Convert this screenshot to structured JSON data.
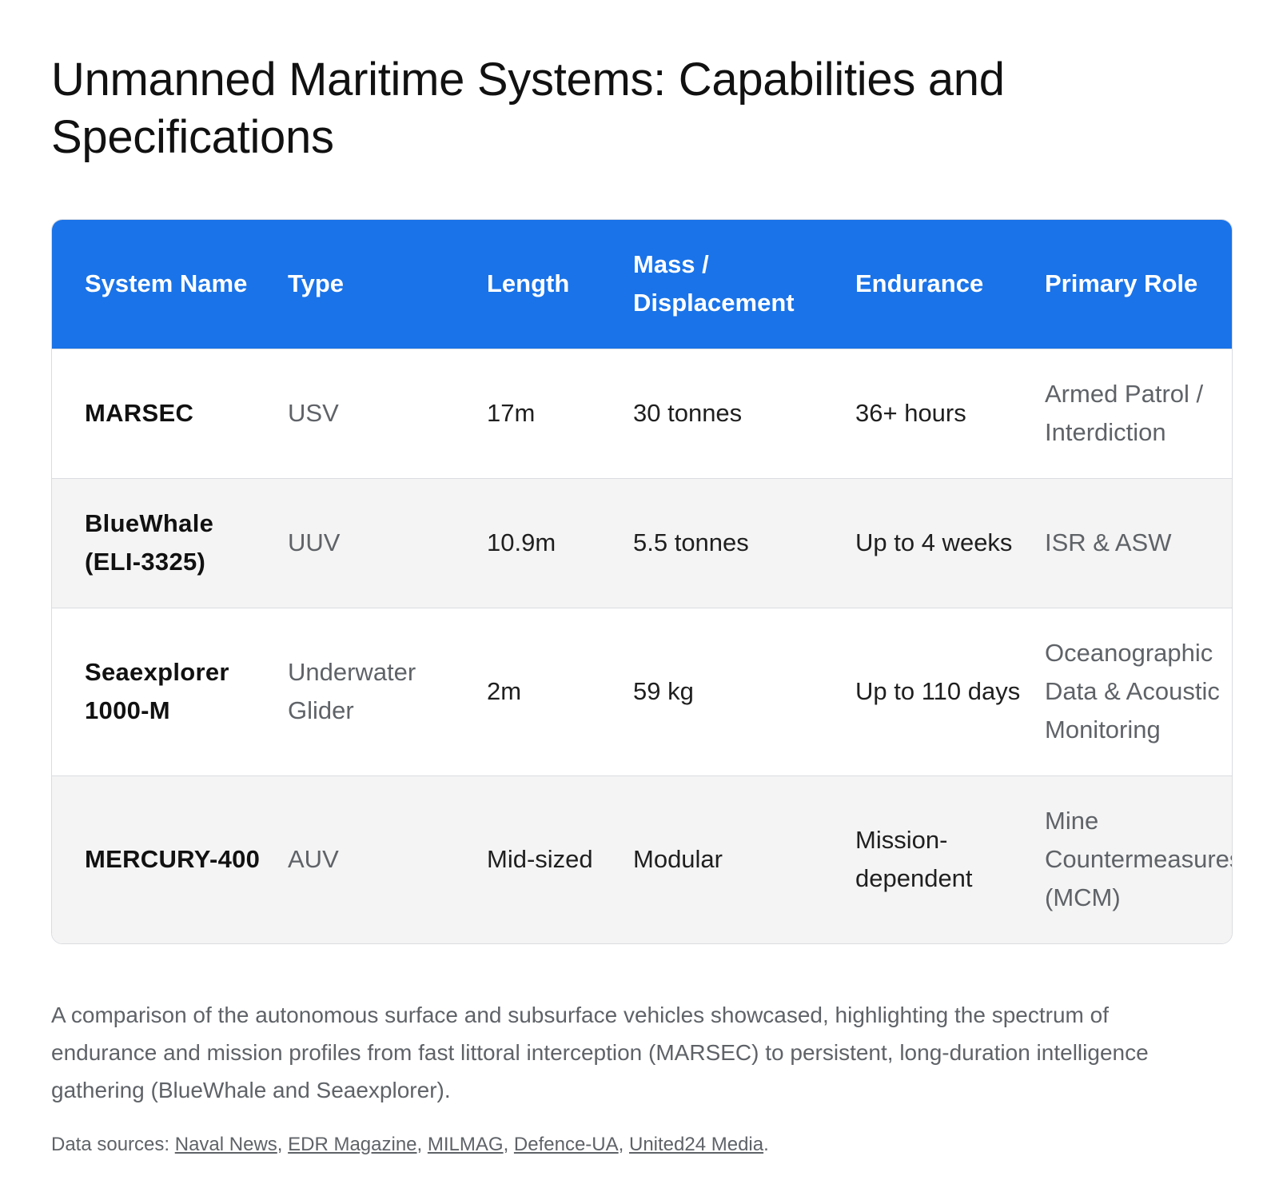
{
  "title": "Unmanned Maritime Systems: Capabilities and Specifications",
  "table": {
    "headers": [
      "System Name",
      "Type",
      "Length",
      "Mass / Displacement",
      "Endurance",
      "Primary Role"
    ],
    "rows": [
      {
        "system": "MARSEC",
        "type": "USV",
        "length": "17m",
        "mass": "30 tonnes",
        "endurance": "36+ hours",
        "role": "Armed Patrol / Interdiction"
      },
      {
        "system": "BlueWhale (ELI-3325)",
        "type": "UUV",
        "length": "10.9m",
        "mass": "5.5 tonnes",
        "endurance": "Up to 4 weeks",
        "role": "ISR & ASW"
      },
      {
        "system": "Seaexplorer 1000-M",
        "type": "Underwater Glider",
        "length": "2m",
        "mass": "59 kg",
        "endurance": "Up to 110 days",
        "role": "Oceanographic Data & Acoustic Monitoring"
      },
      {
        "system": "MERCURY-400",
        "type": "AUV",
        "length": "Mid-sized",
        "mass": "Modular",
        "endurance": "Mission-dependent",
        "role": "Mine Countermeasures (MCM)"
      }
    ]
  },
  "caption": "A comparison of the autonomous surface and subsurface vehicles showcased, highlighting the spectrum of endurance and mission profiles from fast littoral interception (MARSEC) to persistent, long-duration intelligence gathering (BlueWhale and Seaexplorer).",
  "sources": {
    "prefix": "Data sources: ",
    "links": [
      "Naval News",
      "EDR Magazine",
      "MILMAG",
      "Defence-UA",
      "United24 Media"
    ],
    "separator": ", ",
    "suffix": "."
  },
  "colors": {
    "header_bg": "#1a73e8",
    "stripe_bg": "#f4f4f4",
    "border": "#dadce0",
    "muted_text": "#5f6368"
  }
}
